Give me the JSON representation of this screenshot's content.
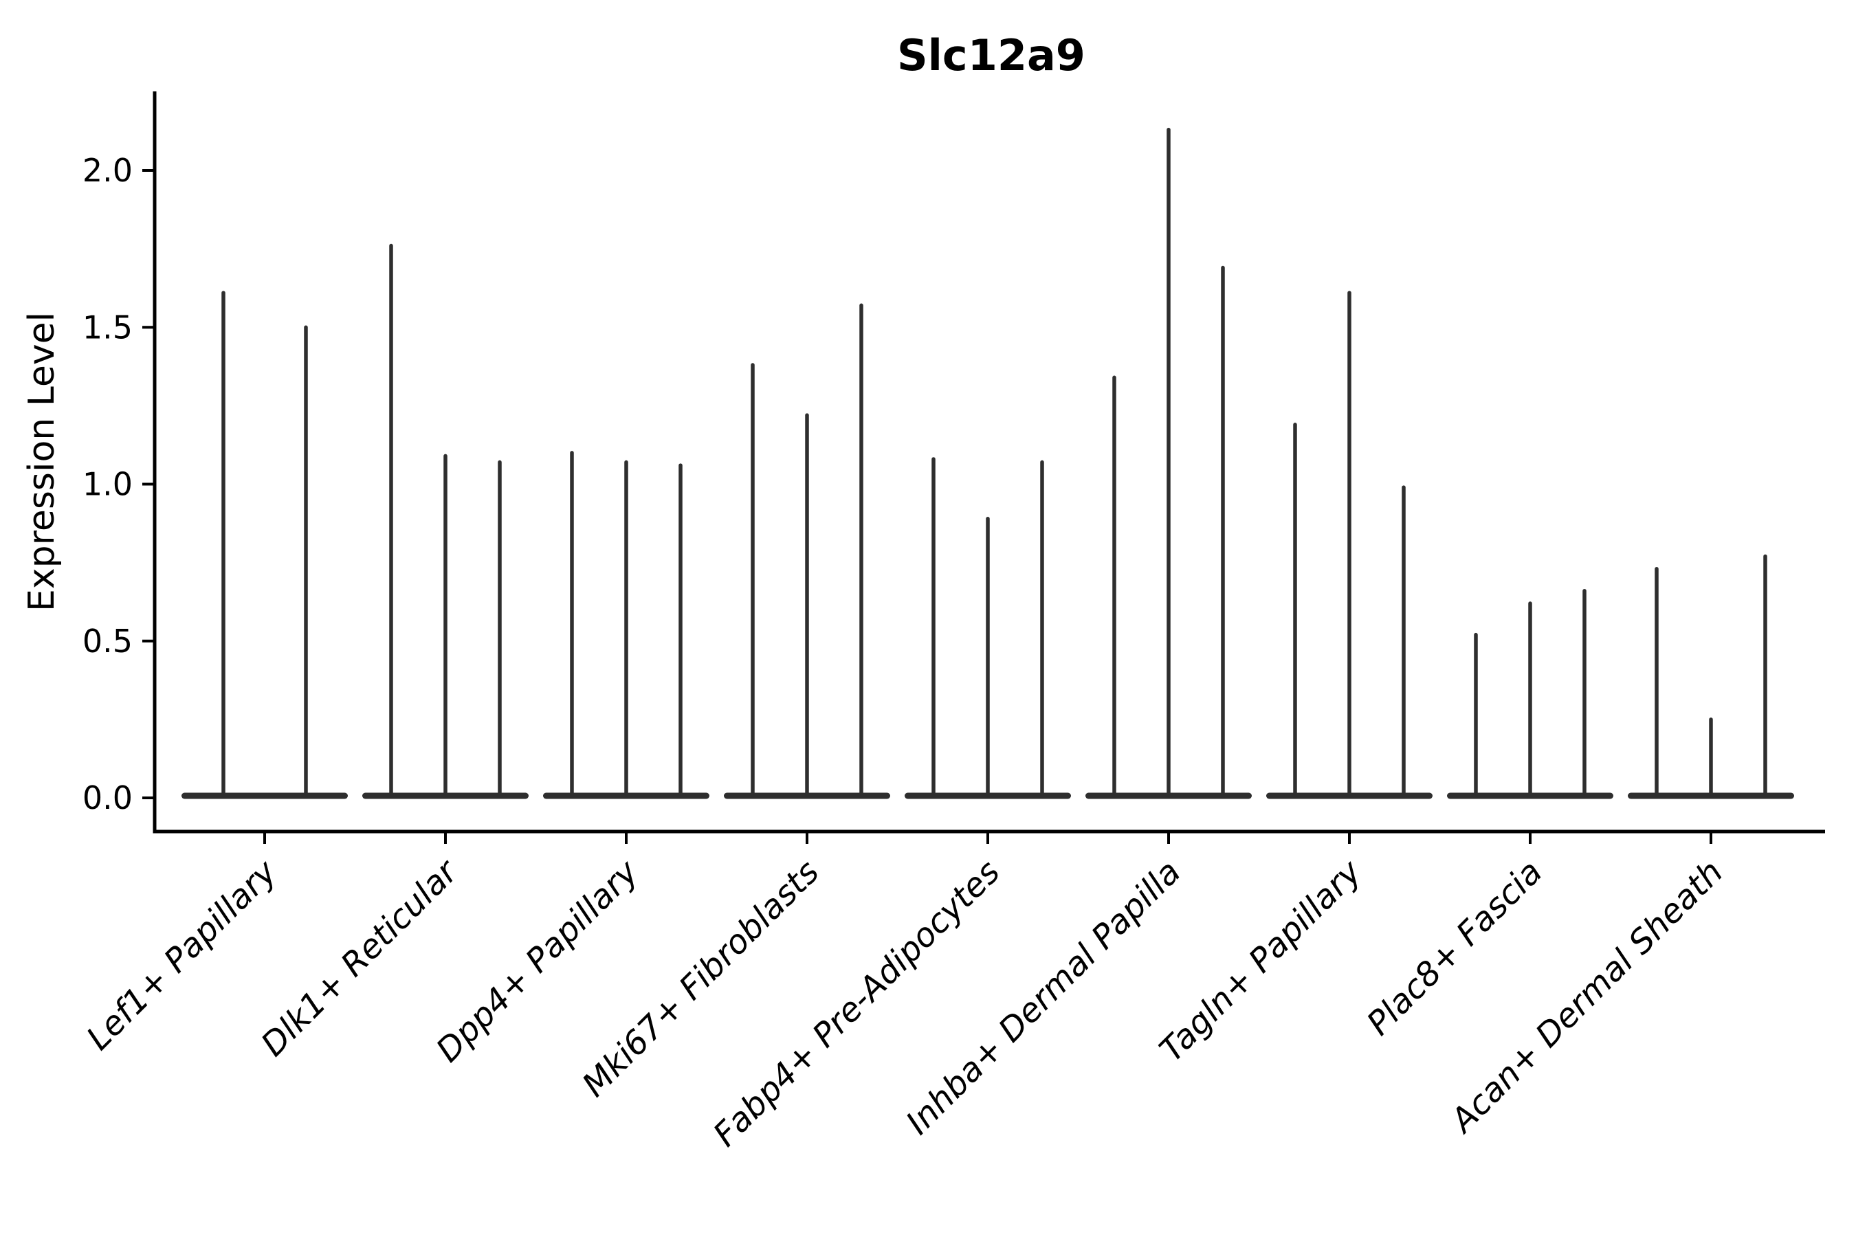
{
  "chart_data": {
    "type": "violin",
    "title": "Slc12a9",
    "ylabel": "Expression Level",
    "xlabel": "",
    "ylim": [
      -0.11,
      2.25
    ],
    "yticks": [
      0.0,
      0.5,
      1.0,
      1.5,
      2.0
    ],
    "ytick_labels": [
      "0.0",
      "0.5",
      "1.0",
      "1.5",
      "2.0"
    ],
    "grid": "off",
    "legend": "none",
    "style_note": "Seurat-style stacked violin: each violin is collapsed to a thin vertical spike (expression mass concentrated at 0) with a flat base blob at y=0; per category there are 2-3 violins (dodged sub-violins).",
    "categories": [
      "Lef1+ Papillary",
      "Dlk1+ Reticular",
      "Dpp4+ Papillary",
      "Mki67+ Fibroblasts",
      "Fabp4+ Pre-Adipocytes",
      "Inhba+ Dermal Papilla",
      "Tagln+ Papillary",
      "Plac8+ Fascia",
      "Acan+ Dermal Sheath"
    ],
    "groups": [
      {
        "label": "Lef1+ Papillary",
        "spike_max_values": [
          1.61,
          1.5
        ]
      },
      {
        "label": "Dlk1+ Reticular",
        "spike_max_values": [
          1.76,
          1.09,
          1.07
        ]
      },
      {
        "label": "Dpp4+ Papillary",
        "spike_max_values": [
          1.1,
          1.07,
          1.06
        ]
      },
      {
        "label": "Mki67+ Fibroblasts",
        "spike_max_values": [
          1.38,
          1.22,
          1.57
        ]
      },
      {
        "label": "Fabp4+ Pre-Adipocytes",
        "spike_max_values": [
          1.08,
          0.89,
          1.07
        ]
      },
      {
        "label": "Inhba+ Dermal Papilla",
        "spike_max_values": [
          1.34,
          2.13,
          1.69
        ]
      },
      {
        "label": "Tagln+ Papillary",
        "spike_max_values": [
          1.19,
          1.61,
          0.99
        ]
      },
      {
        "label": "Plac8+ Fascia",
        "spike_max_values": [
          0.52,
          0.62,
          0.66
        ]
      },
      {
        "label": "Acan+ Dermal Sheath",
        "spike_max_values": [
          0.73,
          0.25,
          0.77
        ]
      }
    ],
    "baseline_value": 0.0,
    "colors": {
      "violin": "#2e2e2e",
      "axis": "#000000",
      "text": "#000000",
      "background": "#ffffff"
    }
  }
}
